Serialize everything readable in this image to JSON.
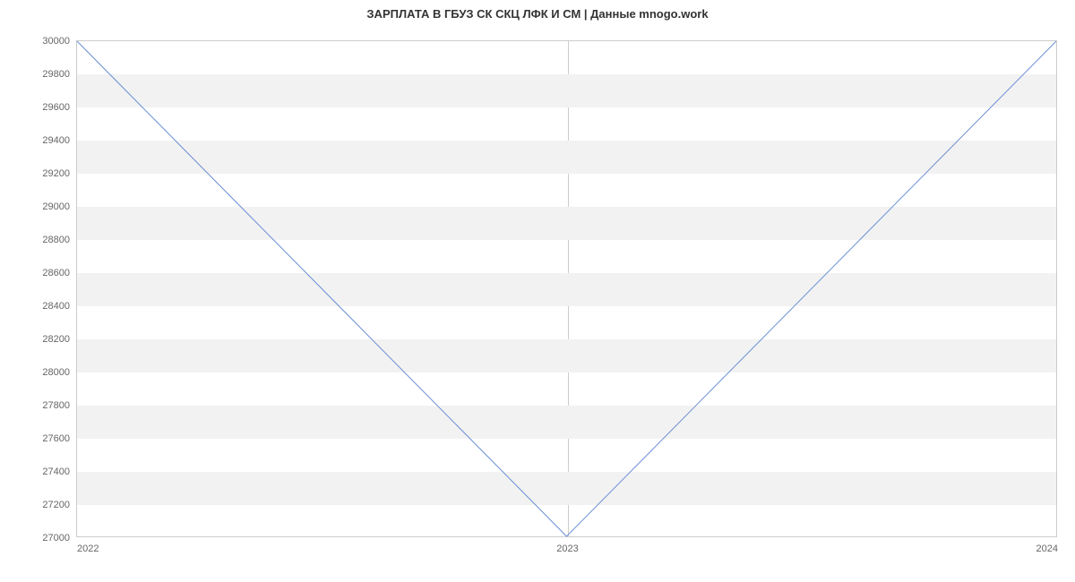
{
  "chart": {
    "type": "line",
    "title": "ЗАРПЛАТА В ГБУЗ СК СКЦ ЛФК И СМ | Данные mnogo.work",
    "title_fontsize": 13,
    "title_color": "#333333",
    "background_color": "#ffffff",
    "plot_border_color": "#cccccc",
    "band_color": "#f2f2f2",
    "label_color": "#666666",
    "label_fontsize": 11,
    "line_color": "#6b8fd4",
    "line_width": 1,
    "x_labels": [
      "2022",
      "2023",
      "2024"
    ],
    "x_positions": [
      0,
      0.5,
      1
    ],
    "y_min": 27000,
    "y_max": 30000,
    "y_ticks": [
      27000,
      27200,
      27400,
      27600,
      27800,
      28000,
      28200,
      28400,
      28600,
      28800,
      29000,
      29200,
      29400,
      29600,
      29800,
      30000
    ],
    "series": {
      "x": [
        0,
        0.5,
        1
      ],
      "y": [
        30000,
        27000,
        30000
      ]
    }
  }
}
